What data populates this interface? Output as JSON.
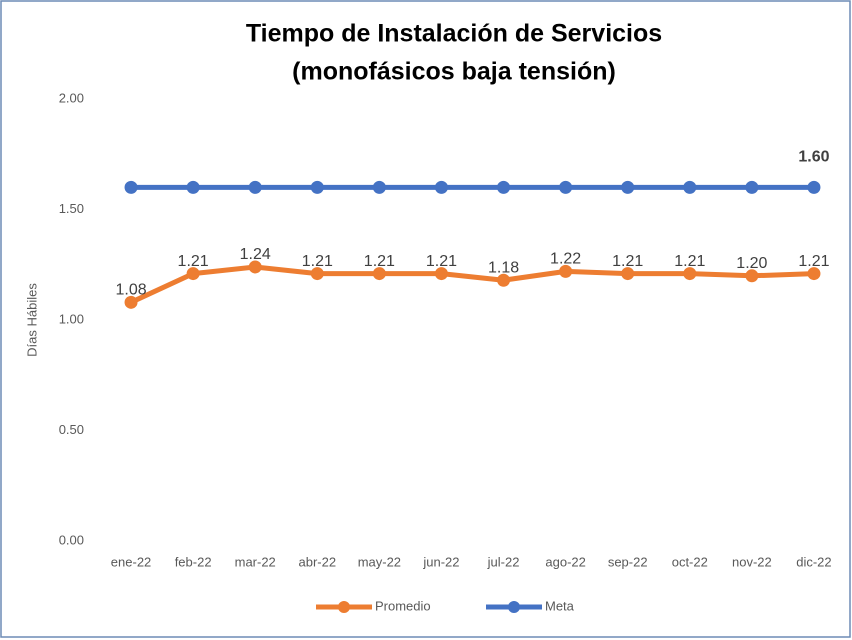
{
  "chart_data": {
    "type": "line",
    "title": [
      "Tiempo de Instalación de Servicios",
      "(monofásicos baja tensión)"
    ],
    "y_label": "Días Hábiles",
    "categories": [
      "ene-22",
      "feb-22",
      "mar-22",
      "abr-22",
      "may-22",
      "jun-22",
      "jul-22",
      "ago-22",
      "sep-22",
      "oct-22",
      "nov-22",
      "dic-22"
    ],
    "series": [
      {
        "name": "Promedio",
        "color": "#ed7d31",
        "values": [
          1.08,
          1.21,
          1.24,
          1.21,
          1.21,
          1.21,
          1.18,
          1.22,
          1.21,
          1.21,
          1.2,
          1.21
        ],
        "value_labels": [
          "1.08",
          "1.21",
          "1.24",
          "1.21",
          "1.21",
          "1.21",
          "1.18",
          "1.22",
          "1.21",
          "1.21",
          "1.20",
          "1.21"
        ]
      },
      {
        "name": "Meta",
        "color": "#4472c4",
        "values": [
          1.6,
          1.6,
          1.6,
          1.6,
          1.6,
          1.6,
          1.6,
          1.6,
          1.6,
          1.6,
          1.6,
          1.6
        ],
        "value_labels": [
          null,
          null,
          null,
          null,
          null,
          null,
          null,
          null,
          null,
          null,
          null,
          "1.60"
        ]
      }
    ],
    "ylim": [
      0,
      2
    ],
    "yticks": [
      {
        "value": 0,
        "label": "0.00"
      },
      {
        "value": 0.5,
        "label": "0.50"
      },
      {
        "value": 1,
        "label": "1.00"
      },
      {
        "value": 1.5,
        "label": "1.50"
      },
      {
        "value": 2,
        "label": "2.00"
      }
    ],
    "grid": false,
    "legend": "bottom"
  }
}
